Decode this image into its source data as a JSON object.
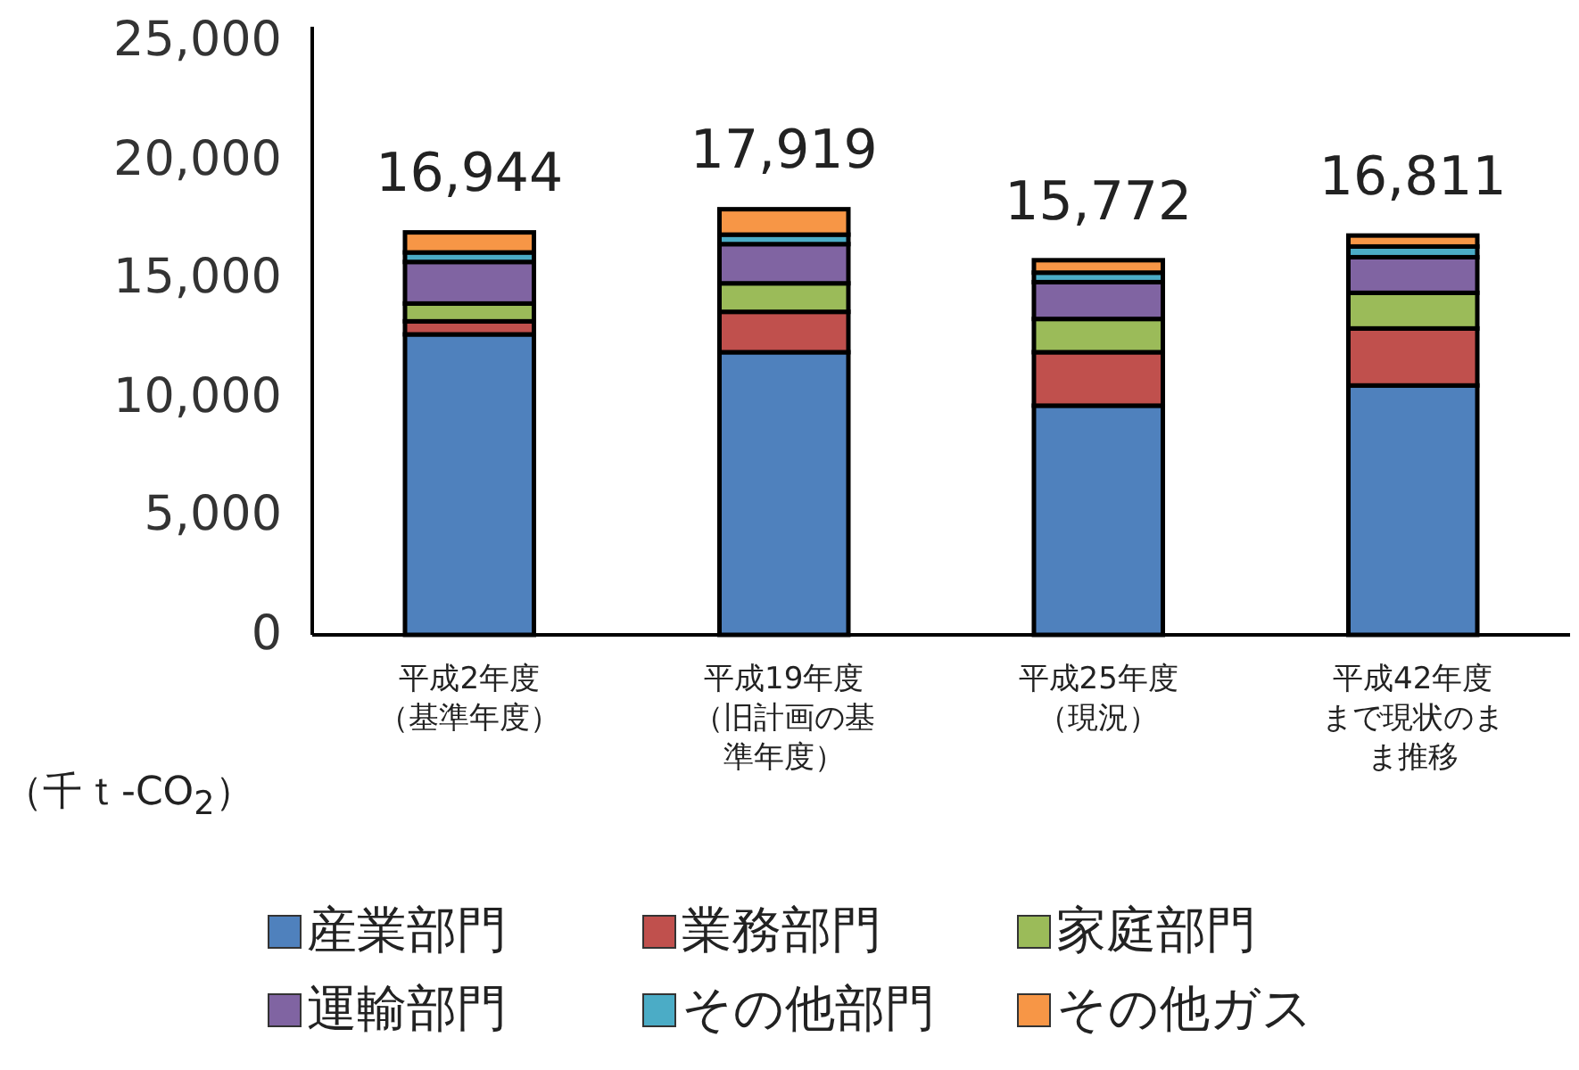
{
  "chart_data": {
    "type": "bar",
    "stacked": true,
    "ylabel": "（千ｔ-CO$_{2}$）",
    "categories": [
      "平成2年度（基準年度）",
      "平成19年度（旧計画の基準年度）",
      "平成25年度（現況）",
      "平成42年度まで現状のまま推移"
    ],
    "series": [
      {
        "name": "産業部門",
        "color": "#4f81bd",
        "values": [
          12650,
          11900,
          9650,
          10500
        ]
      },
      {
        "name": "業務部門",
        "color": "#c0504d",
        "values": [
          550,
          1700,
          2250,
          2400
        ]
      },
      {
        "name": "家庭部門",
        "color": "#9bbb59",
        "values": [
          750,
          1200,
          1400,
          1500
        ]
      },
      {
        "name": "運輸部門",
        "color": "#8064a2",
        "values": [
          1750,
          1650,
          1550,
          1500
        ]
      },
      {
        "name": "その他部門",
        "color": "#4bacc6",
        "values": [
          400,
          400,
          400,
          450
        ]
      },
      {
        "name": "その他ガス",
        "color": "#f79646",
        "values": [
          844,
          1069,
          522,
          461
        ]
      }
    ],
    "totals": [
      "16,944",
      "17,919",
      "15,772",
      "16,811"
    ],
    "ylim": [
      0,
      25000
    ],
    "yticks": [
      {
        "value": 0,
        "label": "0"
      },
      {
        "value": 5000,
        "label": "5,000"
      },
      {
        "value": 10000,
        "label": "10,000"
      },
      {
        "value": 15000,
        "label": "15,000"
      },
      {
        "value": 20000,
        "label": "20,000"
      },
      {
        "value": 25000,
        "label": "25,000"
      }
    ],
    "grid": false,
    "legend": "bottom"
  }
}
